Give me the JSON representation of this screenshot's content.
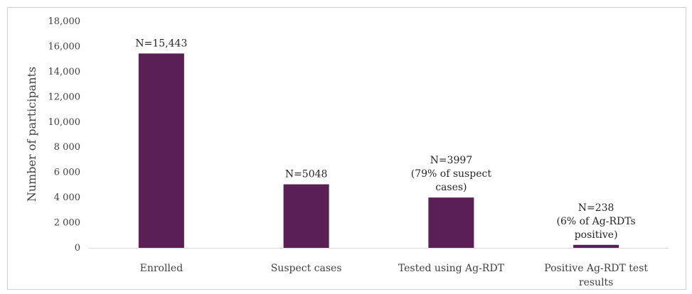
{
  "chart_data": {
    "type": "bar",
    "categories": [
      [
        "Enrolled"
      ],
      [
        "Suspect cases"
      ],
      [
        "Tested using Ag-RDT"
      ],
      [
        "Positive Ag-RDT test",
        "results"
      ]
    ],
    "values": [
      15443,
      5048,
      3997,
      238
    ],
    "data_labels": [
      [
        "N=15,443"
      ],
      [
        "N=5048"
      ],
      [
        "N=3997",
        "(79% of suspect",
        "cases)"
      ],
      [
        "N=238",
        "(6% of Ag-RDTs",
        "positive)"
      ]
    ],
    "ylabel": "Number of participants",
    "ylim": [
      0,
      18000
    ],
    "yticks": [
      {
        "value": 0,
        "label": "0"
      },
      {
        "value": 2000,
        "label": "2 000"
      },
      {
        "value": 4000,
        "label": "4 000"
      },
      {
        "value": 6000,
        "label": "6 000"
      },
      {
        "value": 8000,
        "label": "8 000"
      },
      {
        "value": 10000,
        "label": "10,000"
      },
      {
        "value": 12000,
        "label": "12,000"
      },
      {
        "value": 14000,
        "label": "14,000"
      },
      {
        "value": 16000,
        "label": "16,000"
      },
      {
        "value": 18000,
        "label": "18,000"
      }
    ],
    "bar_color": "#5a1f55",
    "grid": false,
    "legend": "none"
  }
}
